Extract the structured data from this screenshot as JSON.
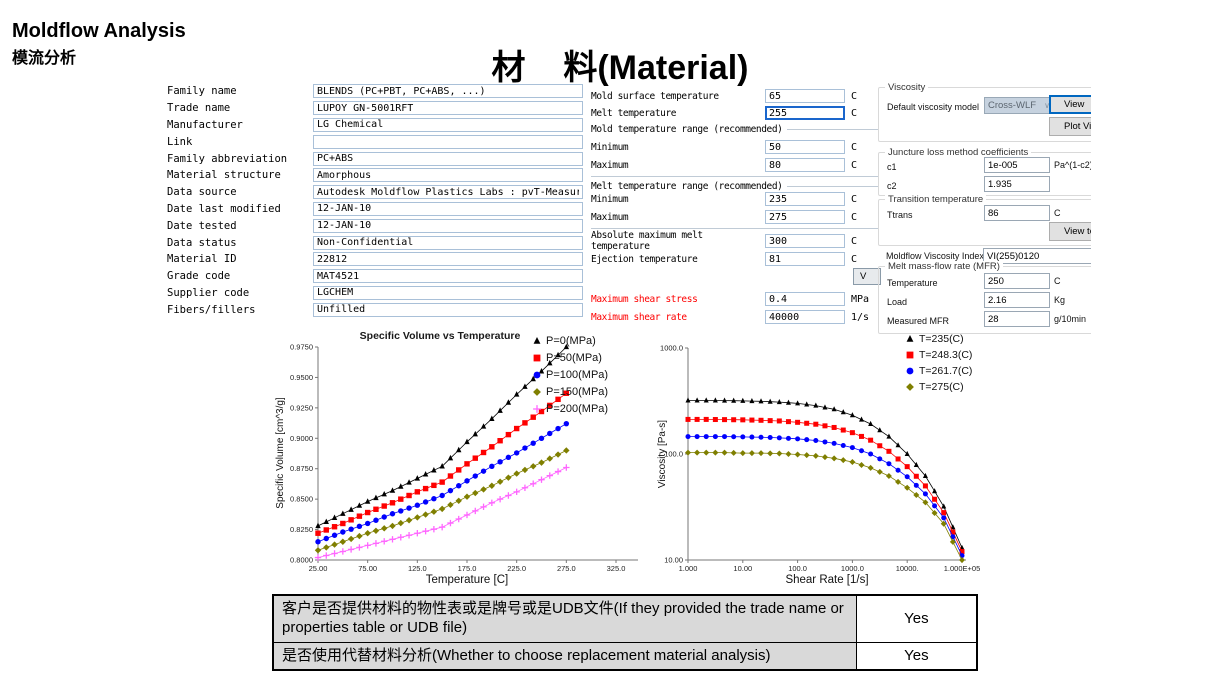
{
  "header": {
    "app_title": "Moldflow Analysis",
    "app_subtitle": "模流分析",
    "page_title": "材    料(Material)"
  },
  "material_form": {
    "fields": [
      {
        "label": "Family name",
        "value": "BLENDS (PC+PBT, PC+ABS, ...)"
      },
      {
        "label": "Trade name",
        "value": "LUPOY GN-5001RFT"
      },
      {
        "label": "Manufacturer",
        "value": "LG Chemical"
      },
      {
        "label": "Link",
        "value": ""
      },
      {
        "label": "Family abbreviation",
        "value": "PC+ABS"
      },
      {
        "label": "Material structure",
        "value": "Amorphous"
      },
      {
        "label": "Data source",
        "value": "Autodesk Moldflow Plastics Labs : pvT-Measured : mech-Supplemental"
      },
      {
        "label": "Date last modified",
        "value": "12-JAN-10"
      },
      {
        "label": "Date tested",
        "value": "12-JAN-10"
      },
      {
        "label": "Data status",
        "value": "Non-Confidential"
      },
      {
        "label": "Material ID",
        "value": "22812"
      },
      {
        "label": "Grade code",
        "value": "MAT4521"
      },
      {
        "label": "Supplier code",
        "value": "LGCHEM"
      },
      {
        "label": "Fibers/fillers",
        "value": "Unfilled"
      }
    ]
  },
  "process_form": {
    "rows": [
      {
        "type": "field",
        "label": "Mold surface temperature",
        "value": "65",
        "unit": "C"
      },
      {
        "type": "field",
        "label": "Melt temperature",
        "value": "255",
        "unit": "C",
        "focused": true
      },
      {
        "type": "section",
        "label": "Mold temperature range (recommended)"
      },
      {
        "type": "field",
        "label": "Minimum",
        "value": "50",
        "unit": "C"
      },
      {
        "type": "field",
        "label": "Maximum",
        "value": "80",
        "unit": "C"
      },
      {
        "type": "hr"
      },
      {
        "type": "section",
        "label": "Melt temperature range (recommended)"
      },
      {
        "type": "field",
        "label": "Minimum",
        "value": "235",
        "unit": "C"
      },
      {
        "type": "field",
        "label": "Maximum",
        "value": "275",
        "unit": "C"
      },
      {
        "type": "hr"
      },
      {
        "type": "field",
        "label": "Absolute maximum melt temperature",
        "value": "300",
        "unit": "C"
      },
      {
        "type": "field",
        "label": "Ejection temperature",
        "value": "81",
        "unit": "C"
      },
      {
        "type": "button",
        "label": "V"
      },
      {
        "type": "field",
        "label": "Maximum shear stress",
        "value": "0.4",
        "unit": "MPa",
        "red": true
      },
      {
        "type": "field",
        "label": "Maximum shear rate",
        "value": "40000",
        "unit": "1/s",
        "red": true
      }
    ]
  },
  "right_panel": {
    "viscosity": {
      "legend": "Viscosity",
      "model_label": "Default viscosity model",
      "model_value": "Cross-WLF",
      "view_button": "View",
      "plot_button": "Plot Visco"
    },
    "juncture": {
      "legend": "Juncture loss method coefficients",
      "fields": [
        {
          "label": "c1",
          "value": "1e-005",
          "unit": "Pa^(1-c2)"
        },
        {
          "label": "c2",
          "value": "1.935",
          "unit": ""
        }
      ]
    },
    "transition": {
      "legend": "Transition temperature",
      "fields": [
        {
          "label": "Ttrans",
          "value": "86",
          "unit": "C"
        }
      ],
      "view_button": "View te"
    },
    "viscosity_index": {
      "label": "Moldflow Viscosity Index",
      "value": "VI(255)0120"
    },
    "mfr": {
      "legend": "Melt mass-flow rate (MFR)",
      "fields": [
        {
          "label": "Temperature",
          "value": "250",
          "unit": "C"
        },
        {
          "label": "Load",
          "value": "2.16",
          "unit": "Kg"
        },
        {
          "label": "Measured MFR",
          "value": "28",
          "unit": "g/10min"
        }
      ]
    }
  },
  "chart_data": [
    {
      "type": "line",
      "title": "Specific Volume vs Temperature",
      "xlabel": "Temperature [C]",
      "ylabel": "Specific Volume [cm^3/g]",
      "xscale": "linear",
      "yscale": "linear",
      "xlim": [
        25,
        325
      ],
      "ylim": [
        0.8,
        0.975
      ],
      "grid": false,
      "legend_position": "right-top",
      "xticks": [
        {
          "v": 25,
          "label": "25.00"
        },
        {
          "v": 75,
          "label": "75.00"
        },
        {
          "v": 125,
          "label": "125.0"
        },
        {
          "v": 175,
          "label": "175.0"
        },
        {
          "v": 225,
          "label": "225.0"
        },
        {
          "v": 275,
          "label": "275.0"
        },
        {
          "v": 325,
          "label": "325.0"
        }
      ],
      "yticks": [
        {
          "v": 0.8,
          "label": "0.8000"
        },
        {
          "v": 0.825,
          "label": "0.8250"
        },
        {
          "v": 0.85,
          "label": "0.8500"
        },
        {
          "v": 0.875,
          "label": "0.8750"
        },
        {
          "v": 0.9,
          "label": "0.9000"
        },
        {
          "v": 0.925,
          "label": "0.9250"
        },
        {
          "v": 0.95,
          "label": "0.9500"
        },
        {
          "v": 0.975,
          "label": "0.9750"
        }
      ],
      "x": [
        25,
        50,
        75,
        100,
        125,
        150,
        175,
        200,
        225,
        250,
        275
      ],
      "series": [
        {
          "name": "P=0(MPa)",
          "color": "#000000",
          "marker": "triangle",
          "values": [
            0.828,
            0.838,
            0.848,
            0.857,
            0.867,
            0.877,
            0.897,
            0.916,
            0.936,
            0.955,
            0.975
          ]
        },
        {
          "name": "P=50(MPa)",
          "color": "#fe0000",
          "marker": "square",
          "values": [
            0.822,
            0.83,
            0.839,
            0.847,
            0.856,
            0.864,
            0.879,
            0.893,
            0.908,
            0.922,
            0.937
          ]
        },
        {
          "name": "P=100(MPa)",
          "color": "#0000fe",
          "marker": "circle",
          "values": [
            0.815,
            0.823,
            0.83,
            0.838,
            0.845,
            0.853,
            0.865,
            0.877,
            0.888,
            0.9,
            0.912
          ]
        },
        {
          "name": "P=150(MPa)",
          "color": "#7f7f00",
          "marker": "diamond",
          "values": [
            0.808,
            0.815,
            0.822,
            0.828,
            0.835,
            0.842,
            0.852,
            0.861,
            0.871,
            0.88,
            0.89
          ]
        },
        {
          "name": "P=200(MPa)",
          "color": "#ff66ff",
          "marker": "plus",
          "values": [
            0.802,
            0.807,
            0.812,
            0.817,
            0.822,
            0.827,
            0.837,
            0.847,
            0.856,
            0.866,
            0.876
          ]
        }
      ]
    },
    {
      "type": "line",
      "title": "",
      "xlabel": "Shear Rate [1/s]",
      "ylabel": "Viscosity [Pa-s]",
      "xscale": "log",
      "yscale": "log",
      "xlim": [
        1,
        100000
      ],
      "ylim": [
        10,
        1000
      ],
      "grid": false,
      "legend_position": "right-top",
      "xticks": [
        {
          "v": 1,
          "label": "1.000"
        },
        {
          "v": 10,
          "label": "10.00"
        },
        {
          "v": 100,
          "label": "100.0"
        },
        {
          "v": 1000,
          "label": "1000.0"
        },
        {
          "v": 10000,
          "label": "10000."
        },
        {
          "v": 100000,
          "label": "1.000E+05"
        }
      ],
      "yticks": [
        {
          "v": 10,
          "label": "10.00"
        },
        {
          "v": 100,
          "label": "100.0"
        },
        {
          "v": 1000,
          "label": "1000.0"
        }
      ],
      "x": [
        1,
        2.15,
        4.64,
        10,
        21.5,
        46.4,
        100,
        215,
        464,
        1000,
        2150,
        4640,
        10000,
        21500,
        46400,
        100000
      ],
      "series": [
        {
          "name": "T=235(C)",
          "color": "#000000",
          "marker": "triangle",
          "values": [
            320,
            320,
            319,
            317,
            314,
            309,
            300,
            286,
            264,
            232,
            192,
            146,
            100,
            62,
            32,
            13
          ]
        },
        {
          "name": "T=248.3(C)",
          "color": "#fe0000",
          "marker": "square",
          "values": [
            212,
            212,
            211,
            210,
            208,
            205,
            199,
            191,
            178,
            159,
            135,
            106,
            76,
            50,
            28,
            12
          ]
        },
        {
          "name": "T=261.7(C)",
          "color": "#0000fe",
          "marker": "circle",
          "values": [
            146,
            146,
            146,
            145,
            144,
            142,
            139,
            134,
            126,
            115,
            100,
            81,
            61,
            42,
            25,
            11
          ]
        },
        {
          "name": "T=275(C)",
          "color": "#7f7f00",
          "marker": "diamond",
          "values": [
            103,
            103,
            103,
            102,
            102,
            101,
            99,
            96,
            91,
            84,
            74,
            62,
            48,
            35,
            22,
            10
          ]
        }
      ]
    }
  ],
  "bottom_table": {
    "rows": [
      {
        "question": "客户是否提供材料的物性表或是牌号或是UDB文件(If they provided the trade name or properties table or UDB file)",
        "answer": "Yes"
      },
      {
        "question": "是否使用代替材料分析(Whether to choose replacement material analysis)",
        "answer": "Yes"
      }
    ]
  }
}
